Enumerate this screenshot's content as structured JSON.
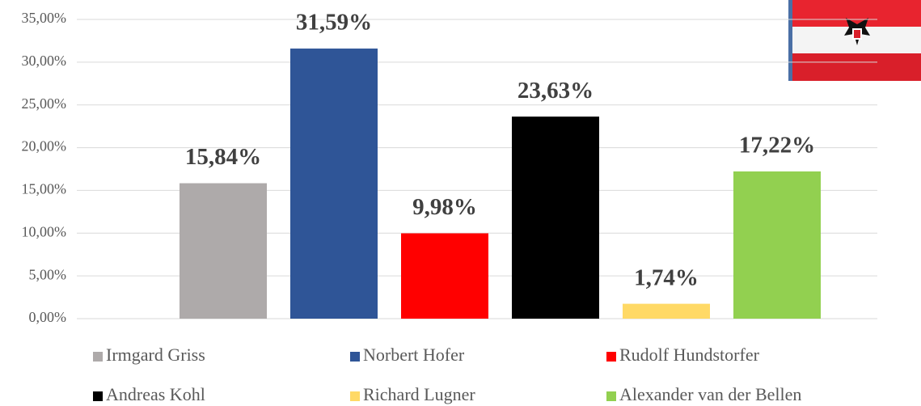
{
  "chart_data": {
    "type": "bar",
    "categories": [
      null
    ],
    "series": [
      {
        "name": "Irmgard Griss",
        "color": "#aeaaaa",
        "values": [
          15.84
        ],
        "value_labels": [
          "15,84%"
        ]
      },
      {
        "name": "Norbert Hofer",
        "color": "#2f5597",
        "values": [
          31.59
        ],
        "value_labels": [
          "31,59%"
        ]
      },
      {
        "name": "Rudolf Hundstorfer",
        "color": "#ff0000",
        "values": [
          9.98
        ],
        "value_labels": [
          "9,98%"
        ]
      },
      {
        "name": "Andreas Kohl",
        "color": "#000000",
        "values": [
          23.63
        ],
        "value_labels": [
          "23,63%"
        ]
      },
      {
        "name": "Richard Lugner",
        "color": "#ffd966",
        "values": [
          1.74
        ],
        "value_labels": [
          "1,74%"
        ]
      },
      {
        "name": "Alexander van der Bellen",
        "color": "#92d050",
        "values": [
          17.22
        ],
        "value_labels": [
          "17,22%"
        ]
      }
    ],
    "ylim": [
      0,
      35
    ],
    "yticks": [
      {
        "value": 0,
        "label": "0,00%"
      },
      {
        "value": 5,
        "label": "5,00%"
      },
      {
        "value": 10,
        "label": "10,00%"
      },
      {
        "value": 15,
        "label": "15,00%"
      },
      {
        "value": 20,
        "label": "20,00%"
      },
      {
        "value": 25,
        "label": "25,00%"
      },
      {
        "value": 30,
        "label": "30,00%"
      },
      {
        "value": 35,
        "label": "35,00%"
      }
    ],
    "grid": true,
    "legend": "bottom"
  }
}
